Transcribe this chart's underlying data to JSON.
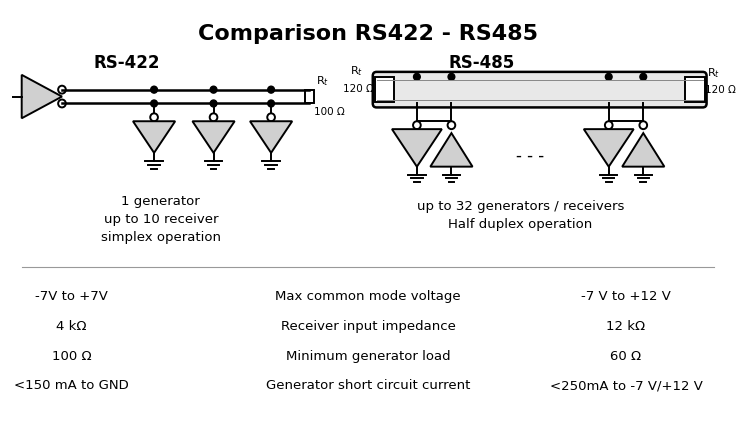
{
  "title": "Comparison RS422 - RS485",
  "title_fontsize": 16,
  "title_fontweight": "bold",
  "rs422_label": "RS-422",
  "rs485_label": "RS-485",
  "label_fontsize": 12,
  "label_fontweight": "bold",
  "rs422_desc": "1 generator\nup to 10 receiver\nsimplex operation",
  "rs485_desc": "up to 32 generators / receivers\nHalf duplex operation",
  "desc_fontsize": 9.5,
  "table_rows": [
    [
      "-7V to +7V",
      "Max common mode voltage",
      "-7 V to +12 V"
    ],
    [
      "4 kΩ",
      "Receiver input impedance",
      "12 kΩ"
    ],
    [
      "100 Ω",
      "Minimum generator load",
      "60 Ω"
    ],
    [
      "<150 mA to GND",
      "Generator short circuit current",
      "<250mA to -7 V/+12 V"
    ]
  ],
  "bg_color": "#ffffff",
  "line_color": "#000000",
  "dot_fill": "#cccccc",
  "tri_fill": "#d0d0d0"
}
